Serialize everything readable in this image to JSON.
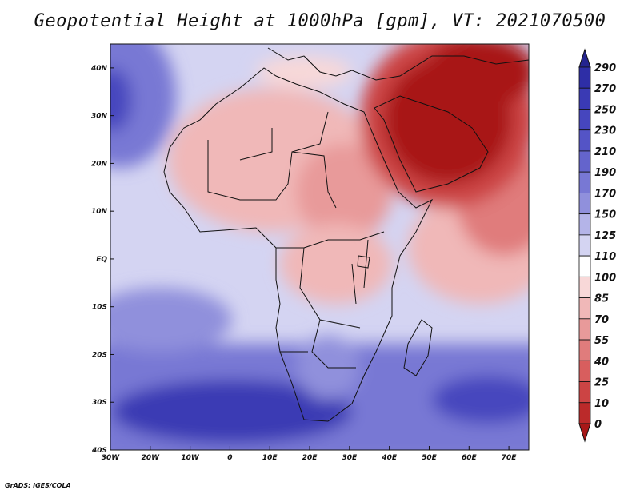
{
  "title": "Geopotential Height at 1000hPa [gpm], VT: 2021070500",
  "footer": "GrADS: IGES/COLA",
  "map": {
    "lon_range": [
      -30,
      75
    ],
    "lat_range": [
      -40,
      45
    ],
    "x_ticks": [
      "30W",
      "20W",
      "10W",
      "0",
      "10E",
      "20E",
      "30E",
      "40E",
      "50E",
      "60E",
      "70E"
    ],
    "y_ticks": [
      "40N",
      "30N",
      "20N",
      "10N",
      "EQ",
      "10S",
      "20S",
      "30S",
      "40S"
    ]
  },
  "colorbar": {
    "labels": [
      "290",
      "270",
      "250",
      "230",
      "210",
      "190",
      "170",
      "150",
      "125",
      "110",
      "100",
      "85",
      "70",
      "55",
      "40",
      "25",
      "10",
      "0"
    ],
    "colors": [
      "#24248f",
      "#2e2ea6",
      "#3a3ab4",
      "#4646be",
      "#5454c6",
      "#6464cc",
      "#7878d4",
      "#9090dc",
      "#b4b4e8",
      "#d4d4f2",
      "#ffffff",
      "#f8d8d8",
      "#f0b8b8",
      "#e89a9a",
      "#e07c7c",
      "#d85e5e",
      "#cc4444",
      "#bb2a2a",
      "#a81818"
    ]
  },
  "regions": {
    "ocean_south": "#5454c6",
    "ocean_deep": "#3a3ab4",
    "atlantic_mid": "#d4d4f2",
    "indian_east": "#e89a9a",
    "sahara": "#f0b8b8",
    "arabia": "#a81818"
  }
}
